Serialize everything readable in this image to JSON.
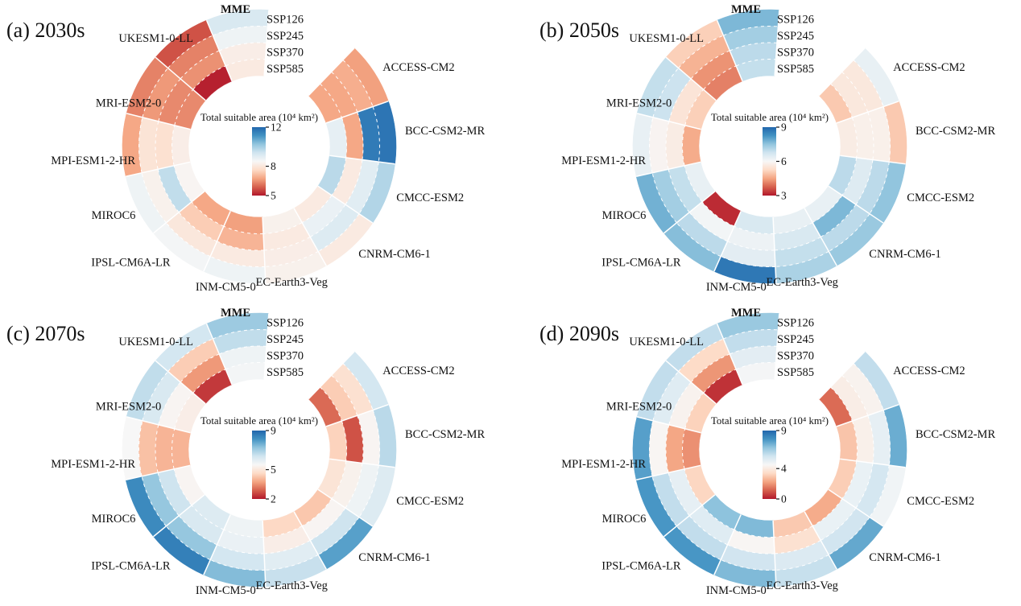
{
  "figure": {
    "description": "Four circular heatmaps of total suitable area by climate model and SSP scenario for four future periods",
    "ring_labels_outer_to_inner": [
      "SSP126",
      "SSP245",
      "SSP370",
      "SSP585"
    ],
    "colormap": {
      "low": "#b2182b",
      "mid": "#f7f7f7",
      "high": "#2166ac"
    }
  },
  "chart_data": [
    {
      "type": "heatmap",
      "subtype": "circular-annulus-heatmap",
      "panel_label": "(a) 2030s",
      "colorbar_title": "Total suitable area (10⁴ km²)",
      "rings": [
        "SSP126",
        "SSP245",
        "SSP370",
        "SSP585"
      ],
      "scale": {
        "vmin": 5,
        "vmax": 12,
        "ticks": [
          12,
          8,
          5
        ]
      },
      "series": [
        {
          "name": "MME",
          "values": [
            9.2,
            8.7,
            8.2,
            8.1
          ]
        },
        {
          "name": "ACCESS-CM2",
          "values": [
            6.7,
            6.9,
            6.8,
            6.8
          ]
        },
        {
          "name": "BCC-CSM2-MR",
          "values": [
            11.7,
            11.6,
            6.8,
            8.9
          ]
        },
        {
          "name": "CMCC-ESM2",
          "values": [
            9.8,
            9.0,
            8.1,
            9.7
          ]
        },
        {
          "name": "CNRM-CM6-1",
          "values": [
            8.1,
            9.1,
            8.8,
            8.1
          ]
        },
        {
          "name": "EC-Earth3-Veg",
          "values": [
            8.3,
            8.2,
            8.1,
            8.3
          ]
        },
        {
          "name": "INM-CM5-0",
          "values": [
            8.7,
            8.1,
            7.0,
            6.7
          ]
        },
        {
          "name": "IPSL-CM6A-LR",
          "values": [
            8.6,
            8.0,
            7.4,
            6.8
          ]
        },
        {
          "name": "MIROC6",
          "values": [
            8.7,
            8.3,
            9.6,
            8.4
          ]
        },
        {
          "name": "MPI-ESM1-2-HR",
          "values": [
            6.8,
            7.9,
            7.8,
            8.2
          ]
        },
        {
          "name": "MRI-ESM2-0",
          "values": [
            6.3,
            6.6,
            6.4,
            6.4
          ]
        },
        {
          "name": "UKESM1-0-LL",
          "values": [
            5.7,
            6.3,
            6.5,
            5.1
          ]
        }
      ]
    },
    {
      "type": "heatmap",
      "subtype": "circular-annulus-heatmap",
      "panel_label": "(b) 2050s",
      "colorbar_title": "Total suitable area (10⁴ km²)",
      "rings": [
        "SSP126",
        "SSP245",
        "SSP370",
        "SSP585"
      ],
      "scale": {
        "vmin": 3,
        "vmax": 9,
        "ticks": [
          9,
          6,
          3
        ]
      },
      "series": [
        {
          "name": "MME",
          "values": [
            7.7,
            7.3,
            7.0,
            6.9
          ]
        },
        {
          "name": "ACCESS-CM2",
          "values": [
            6.3,
            5.6,
            5.6,
            5.0
          ]
        },
        {
          "name": "BCC-CSM2-MR",
          "values": [
            5.0,
            5.8,
            5.8,
            5.7
          ]
        },
        {
          "name": "CMCC-ESM2",
          "values": [
            7.5,
            7.0,
            6.5,
            7.0
          ]
        },
        {
          "name": "CNRM-CM6-1",
          "values": [
            7.4,
            7.0,
            7.7,
            6.3
          ]
        },
        {
          "name": "EC-Earth3-Veg",
          "values": [
            7.2,
            6.9,
            6.6,
            6.3
          ]
        },
        {
          "name": "INM-CM5-0",
          "values": [
            8.7,
            6.4,
            6.2,
            6.6
          ]
        },
        {
          "name": "IPSL-CM6A-LR",
          "values": [
            7.6,
            7.0,
            6.1,
            3.2
          ]
        },
        {
          "name": "MIROC6",
          "values": [
            7.8,
            7.3,
            6.9,
            6.3
          ]
        },
        {
          "name": "MPI-ESM1-2-HR",
          "values": [
            6.3,
            5.9,
            5.7,
            4.6
          ]
        },
        {
          "name": "MRI-ESM2-0",
          "values": [
            6.9,
            6.8,
            5.5,
            5.1
          ]
        },
        {
          "name": "UKESM1-0-LL",
          "values": [
            5.1,
            4.7,
            4.3,
            4.1
          ]
        }
      ]
    },
    {
      "type": "heatmap",
      "subtype": "circular-annulus-heatmap",
      "panel_label": "(c) 2070s",
      "colorbar_title": "Total suitable area (10⁴ km²)",
      "rings": [
        "SSP126",
        "SSP245",
        "SSP370",
        "SSP585"
      ],
      "scale": {
        "vmin": 2,
        "vmax": 9,
        "ticks": [
          9,
          5,
          2
        ]
      },
      "series": [
        {
          "name": "MME",
          "values": [
            7.1,
            6.6,
            5.7,
            5.6
          ]
        },
        {
          "name": "ACCESS-CM2",
          "values": [
            6.3,
            4.8,
            4.4,
            3.0
          ]
        },
        {
          "name": "BCC-CSM2-MR",
          "values": [
            6.7,
            5.4,
            2.7,
            4.5
          ]
        },
        {
          "name": "CMCC-ESM2",
          "values": [
            6.1,
            5.7,
            5.3,
            4.9
          ]
        },
        {
          "name": "CNRM-CM6-1",
          "values": [
            7.9,
            6.4,
            5.4,
            4.3
          ]
        },
        {
          "name": "EC-Earth3-Veg",
          "values": [
            6.5,
            6.0,
            5.2,
            4.6
          ]
        },
        {
          "name": "INM-CM5-0",
          "values": [
            7.4,
            6.3,
            5.8,
            5.7
          ]
        },
        {
          "name": "IPSL-CM6A-LR",
          "values": [
            8.5,
            7.2,
            6.2,
            6.1
          ]
        },
        {
          "name": "MIROC6",
          "values": [
            8.3,
            7.2,
            6.4,
            5.4
          ]
        },
        {
          "name": "MPI-ESM1-2-HR",
          "values": [
            5.5,
            4.2,
            4.0,
            4.0
          ]
        },
        {
          "name": "MRI-ESM2-0",
          "values": [
            6.6,
            6.2,
            5.4,
            5.2
          ]
        },
        {
          "name": "UKESM1-0-LL",
          "values": [
            6.3,
            4.4,
            3.6,
            2.4
          ]
        }
      ]
    },
    {
      "type": "heatmap",
      "subtype": "circular-annulus-heatmap",
      "panel_label": "(d) 2090s",
      "colorbar_title": "Total suitable area (10⁴ km²)",
      "rings": [
        "SSP126",
        "SSP245",
        "SSP370",
        "SSP585"
      ],
      "scale": {
        "vmin": 0,
        "vmax": 9,
        "ticks": [
          9,
          4,
          0
        ]
      },
      "series": [
        {
          "name": "MME",
          "values": [
            6.6,
            5.9,
            5.1,
            4.6
          ]
        },
        {
          "name": "ACCESS-CM2",
          "values": [
            5.9,
            4.3,
            4.1,
            1.3
          ]
        },
        {
          "name": "BCC-CSM2-MR",
          "values": [
            7.3,
            5.0,
            4.2,
            2.9
          ]
        },
        {
          "name": "CMCC-ESM2",
          "values": [
            4.7,
            5.5,
            4.9,
            3.1
          ]
        },
        {
          "name": "CNRM-CM6-1",
          "values": [
            7.4,
            5.6,
            4.9,
            2.4
          ]
        },
        {
          "name": "EC-Earth3-Veg",
          "values": [
            5.8,
            5.3,
            3.6,
            3.0
          ]
        },
        {
          "name": "INM-CM5-0",
          "values": [
            7.0,
            5.6,
            4.4,
            7.0
          ]
        },
        {
          "name": "IPSL-CM6A-LR",
          "values": [
            7.8,
            5.9,
            5.2,
            6.8
          ]
        },
        {
          "name": "MIROC6",
          "values": [
            7.8,
            5.9,
            5.0,
            3.3
          ]
        },
        {
          "name": "MPI-ESM1-2-HR",
          "values": [
            7.6,
            4.4,
            2.3,
            1.9
          ]
        },
        {
          "name": "MRI-ESM2-0",
          "values": [
            5.9,
            5.2,
            4.3,
            3.2
          ]
        },
        {
          "name": "UKESM1-0-LL",
          "values": [
            5.9,
            3.4,
            2.0,
            0.4
          ]
        }
      ]
    }
  ]
}
